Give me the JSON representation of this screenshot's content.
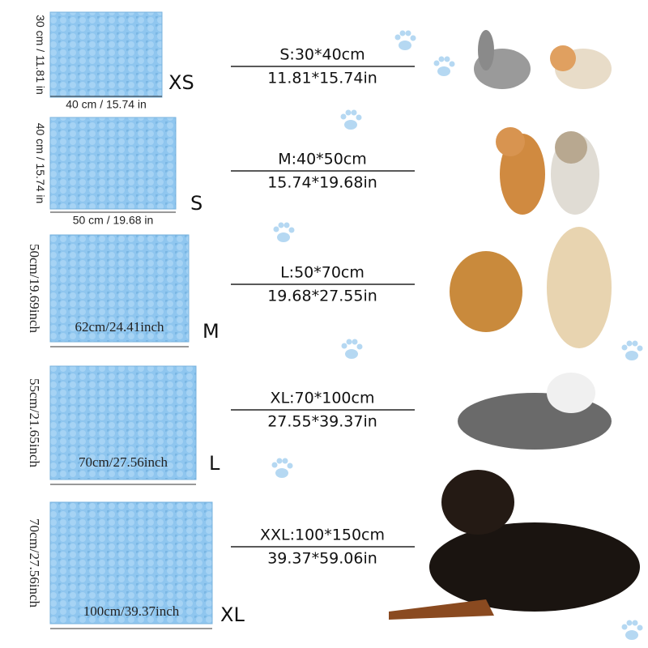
{
  "rows": [
    {
      "height": "30 cm / 11.81 in",
      "width": "40 cm / 15.74 in",
      "size": "XS",
      "spec": "S:30*40cm",
      "spec_in": "11.81*15.74in"
    },
    {
      "height": "40 cm / 15.74 in",
      "width": "50 cm / 19.68 in",
      "size": "S",
      "spec": "M:40*50cm",
      "spec_in": "15.74*19.68in"
    },
    {
      "height": "50cm/19.69inch",
      "width": "62cm/24.41inch",
      "size": "M",
      "spec": "L:50*70cm",
      "spec_in": "19.68*27.55in"
    },
    {
      "height": "55cm/21.65inch",
      "width": "70cm/27.56inch",
      "size": "L",
      "spec": "XL:70*100cm",
      "spec_in": "27.55*39.37in"
    },
    {
      "height": "70cm/27.56inch",
      "width": "100cm/39.37inch",
      "size": "XL",
      "spec": "XXL:100*150cm",
      "spec_in": "39.37*59.06in"
    }
  ]
}
